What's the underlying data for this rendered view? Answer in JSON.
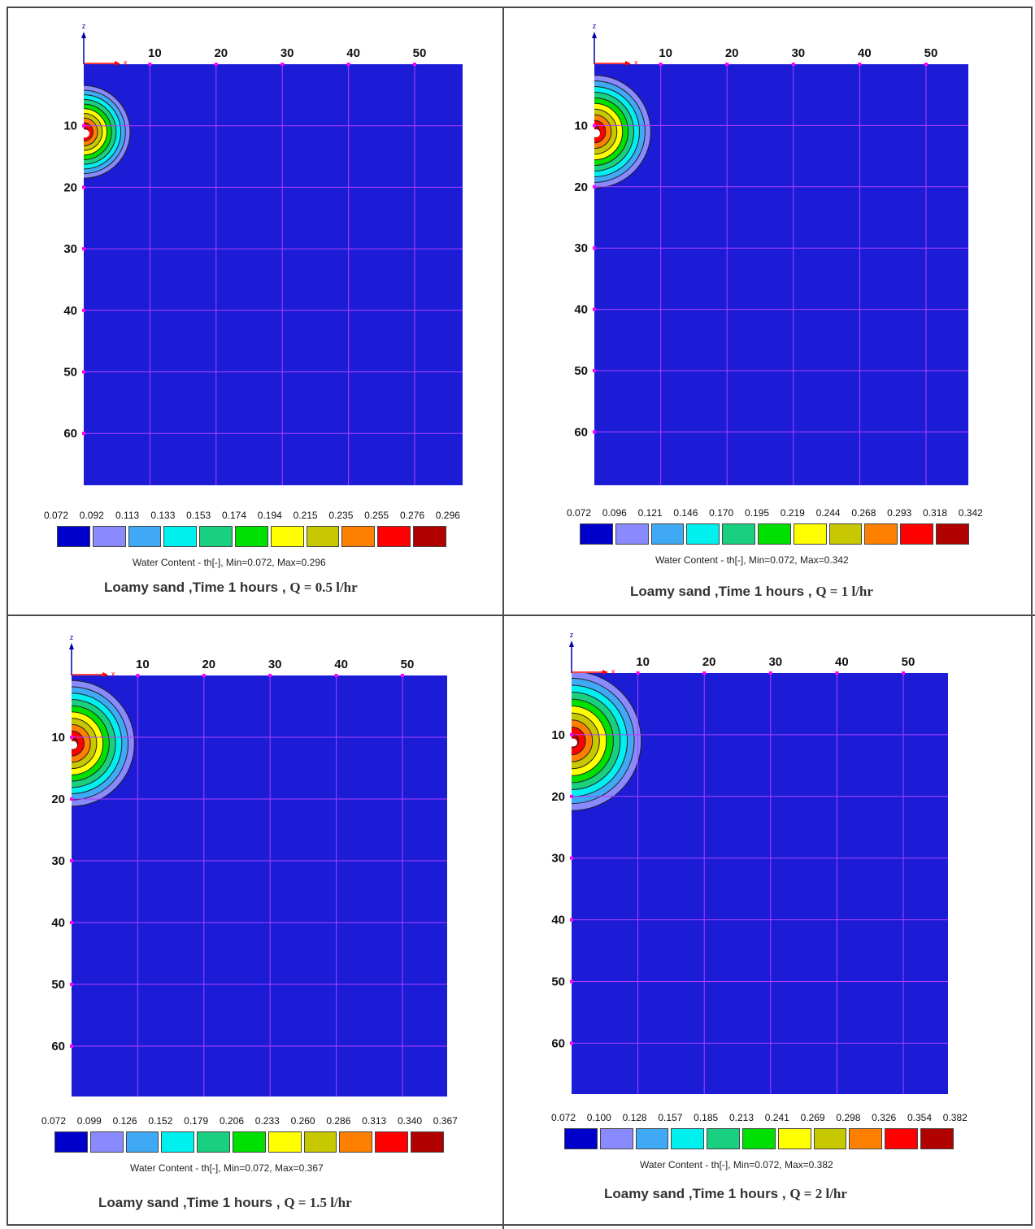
{
  "chart_data": [
    {
      "type": "heatmap",
      "x_tick_labels": [
        "10",
        "20",
        "30",
        "40",
        "50"
      ],
      "z_tick_labels": [
        "10",
        "20",
        "30",
        "40",
        "50",
        "60"
      ],
      "x_axis_letter": "x",
      "z_axis_letter": "z",
      "legend_ticks": [
        "0.072",
        "0.092",
        "0.113",
        "0.133",
        "0.153",
        "0.174",
        "0.194",
        "0.215",
        "0.235",
        "0.255",
        "0.276",
        "0.296"
      ],
      "legend_caption": "Water Content  - th[-], Min=0.072, Max=0.296",
      "title_main": "Loamy sand ,Time 1  hours , ",
      "title_q": "Q =  0.5 l/hr",
      "min": 0.072,
      "max": 0.296,
      "source_position": [
        0,
        11
      ],
      "plume_radius": 7
    },
    {
      "type": "heatmap",
      "x_tick_labels": [
        "10",
        "20",
        "30",
        "40",
        "50"
      ],
      "z_tick_labels": [
        "10",
        "20",
        "30",
        "40",
        "50",
        "60"
      ],
      "x_axis_letter": "x",
      "z_axis_letter": "z",
      "legend_ticks": [
        "0.072",
        "0.096",
        "0.121",
        "0.146",
        "0.170",
        "0.195",
        "0.219",
        "0.244",
        "0.268",
        "0.293",
        "0.318",
        "0.342"
      ],
      "legend_caption": "Water Content  - th[-], Min=0.072, Max=0.342",
      "title_main": "Loamy sand ,Time 1  hours , ",
      "title_q": "Q =  1  l/hr",
      "min": 0.072,
      "max": 0.342,
      "source_position": [
        0,
        11
      ],
      "plume_radius": 8.5
    },
    {
      "type": "heatmap",
      "x_tick_labels": [
        "10",
        "20",
        "30",
        "40",
        "50"
      ],
      "z_tick_labels": [
        "10",
        "20",
        "30",
        "40",
        "50",
        "60"
      ],
      "x_axis_letter": "x",
      "z_axis_letter": "z",
      "legend_ticks": [
        "0.072",
        "0.099",
        "0.126",
        "0.152",
        "0.179",
        "0.206",
        "0.233",
        "0.260",
        "0.286",
        "0.313",
        "0.340",
        "0.367"
      ],
      "legend_caption": "Water Content  - th[-], Min=0.072, Max=0.367",
      "title_main": "Loamy sand ,Time 1  hours , ",
      "title_q": "Q = 1.5 l/hr",
      "min": 0.072,
      "max": 0.367,
      "source_position": [
        0,
        11
      ],
      "plume_radius": 9.5
    },
    {
      "type": "heatmap",
      "x_tick_labels": [
        "10",
        "20",
        "30",
        "40",
        "50"
      ],
      "z_tick_labels": [
        "10",
        "20",
        "30",
        "40",
        "50",
        "60"
      ],
      "x_axis_letter": "x",
      "z_axis_letter": "z",
      "legend_ticks": [
        "0.072",
        "0.100",
        "0.128",
        "0.157",
        "0.185",
        "0.213",
        "0.241",
        "0.269",
        "0.298",
        "0.326",
        "0.354",
        "0.382"
      ],
      "legend_caption": "Water Content  - th[-], Min=0.072, Max=0.382",
      "title_main": "Loamy sand ,Time 1  hours , ",
      "title_q": "Q =  2   l/hr",
      "min": 0.072,
      "max": 0.382,
      "source_position": [
        0,
        11
      ],
      "plume_radius": 10.5
    }
  ],
  "legend_colors": [
    "#0000cc",
    "#8a8aff",
    "#3fa9f5",
    "#00f0f0",
    "#18d080",
    "#00e000",
    "#ffff00",
    "#c8c800",
    "#ff8000",
    "#ff0000",
    "#b00000"
  ],
  "plot_background": "#1c1cd6",
  "grid_color": "#b040ff",
  "axis_z_color": "#0000aa",
  "axis_x_color": "#ff0000"
}
